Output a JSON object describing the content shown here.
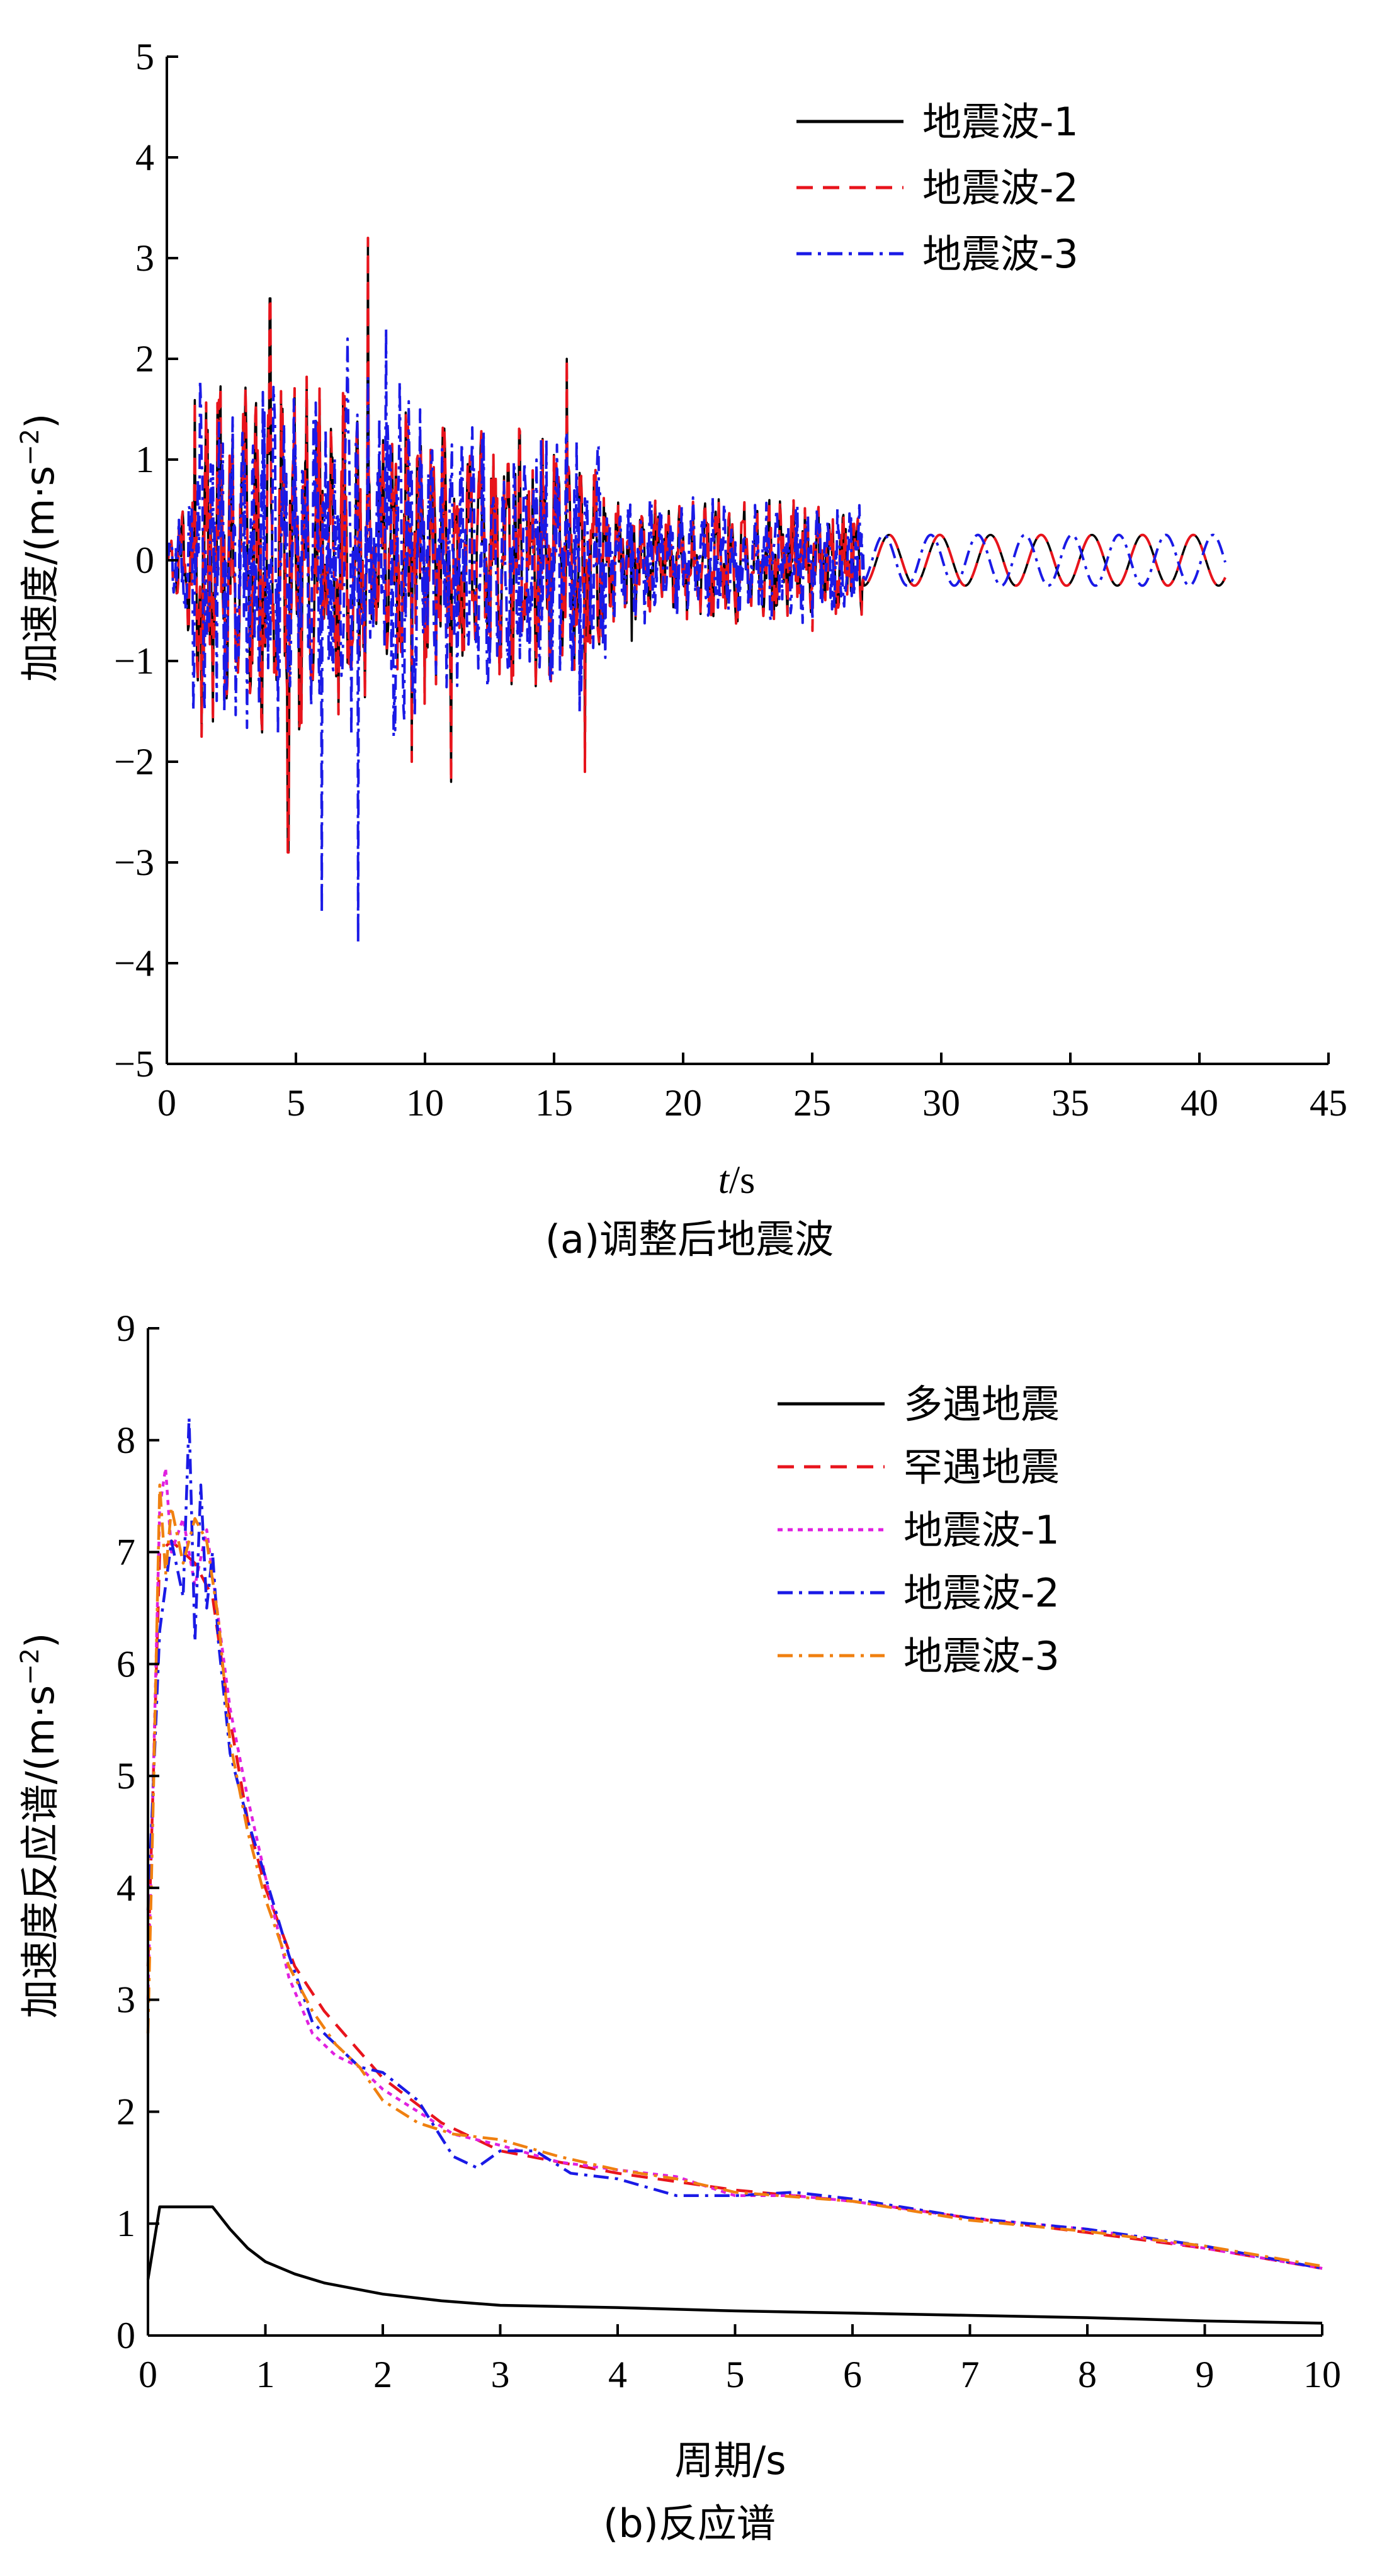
{
  "chart_data": [
    {
      "type": "line",
      "caption": "(a)调整后地震波",
      "xlabel_italic": "t",
      "xlabel_unit": "/s",
      "ylabel": "加速度/(m·s",
      "ylabel_exp": "−2",
      "ylabel_close": ")",
      "xlim": [
        0,
        45
      ],
      "ylim": [
        -5,
        5
      ],
      "xticks": [
        "0",
        "5",
        "10",
        "15",
        "20",
        "25",
        "30",
        "35",
        "40",
        "45"
      ],
      "yticks": [
        "5",
        "4",
        "3",
        "2",
        "1",
        "0",
        "−1",
        "−2",
        "−3",
        "−4",
        "−5"
      ],
      "legend_position": "top-right",
      "duration": 41,
      "series": [
        {
          "name": "地震波-1",
          "color": "#000000",
          "style": "solid",
          "peaks": [
            [
              4.0,
              2.6
            ],
            [
              4.7,
              -2.9
            ],
            [
              7.8,
              3.2
            ],
            [
              9.5,
              -2.0
            ],
            [
              11.0,
              -2.2
            ],
            [
              15.5,
              2.0
            ],
            [
              16.2,
              -2.1
            ],
            [
              18.0,
              -0.8
            ]
          ]
        },
        {
          "name": "地震波-2",
          "color": "#e8141c",
          "style": "dashed",
          "peaks": [
            [
              4.0,
              2.6
            ],
            [
              4.7,
              -2.9
            ],
            [
              7.8,
              3.2
            ],
            [
              9.5,
              -2.0
            ],
            [
              11.0,
              -2.2
            ],
            [
              15.5,
              2.0
            ],
            [
              16.2,
              -2.1
            ],
            [
              25.0,
              -0.7
            ]
          ]
        },
        {
          "name": "地震波-3",
          "color": "#1a1ae6",
          "style": "dashdot",
          "peaks": [
            [
              6.0,
              -3.5
            ],
            [
              7.0,
              2.2
            ],
            [
              7.4,
              -3.8
            ],
            [
              8.5,
              2.3
            ],
            [
              14.5,
              1.2
            ],
            [
              16.0,
              -1.5
            ]
          ]
        }
      ]
    },
    {
      "type": "line",
      "caption": "(b)反应谱",
      "xlabel": "周期/s",
      "ylabel": "加速度反应谱/(m·s",
      "ylabel_exp": "−2",
      "ylabel_close": ")",
      "xlim": [
        0,
        10
      ],
      "ylim": [
        0,
        9
      ],
      "xticks": [
        "0",
        "1",
        "2",
        "3",
        "4",
        "5",
        "6",
        "7",
        "8",
        "9",
        "10"
      ],
      "yticks": [
        "9",
        "8",
        "7",
        "6",
        "5",
        "4",
        "3",
        "2",
        "1",
        "0"
      ],
      "legend_position": "top-right",
      "series": [
        {
          "name": "多遇地震",
          "color": "#000000",
          "style": "solid",
          "x": [
            0,
            0.1,
            0.2,
            0.3,
            0.4,
            0.55,
            0.7,
            0.85,
            1.0,
            1.25,
            1.5,
            2.0,
            2.5,
            3.0,
            4.0,
            5.0,
            6.0,
            7.0,
            8.0,
            9.0,
            10.0
          ],
          "y": [
            0.5,
            1.15,
            1.15,
            1.15,
            1.15,
            1.15,
            0.95,
            0.78,
            0.66,
            0.55,
            0.47,
            0.37,
            0.31,
            0.27,
            0.25,
            0.22,
            0.2,
            0.18,
            0.16,
            0.13,
            0.11
          ]
        },
        {
          "name": "罕遇地震",
          "color": "#e8141c",
          "style": "dashed",
          "x": [
            0,
            0.1,
            0.2,
            0.3,
            0.4,
            0.55,
            0.7,
            0.85,
            1.0,
            1.25,
            1.5,
            2.0,
            2.5,
            3.0,
            4.0,
            5.0,
            6.0,
            7.0,
            8.0,
            9.0,
            10.0
          ],
          "y": [
            3.3,
            7.0,
            7.1,
            7.0,
            6.9,
            6.6,
            5.5,
            4.6,
            4.0,
            3.3,
            2.9,
            2.3,
            1.9,
            1.65,
            1.45,
            1.3,
            1.2,
            1.05,
            0.92,
            0.78,
            0.6
          ]
        },
        {
          "name": "地震波-1",
          "color": "#e020e0",
          "style": "dotted",
          "x": [
            0,
            0.1,
            0.15,
            0.2,
            0.3,
            0.4,
            0.5,
            0.6,
            0.7,
            0.85,
            1.0,
            1.2,
            1.4,
            1.6,
            1.8,
            2.0,
            2.3,
            2.6,
            3.0,
            3.5,
            4.0,
            4.5,
            5.0,
            5.5,
            6.0,
            7.0,
            8.0,
            9.0,
            10.0
          ],
          "y": [
            3.0,
            7.4,
            7.75,
            7.0,
            7.3,
            6.7,
            7.2,
            6.4,
            5.6,
            4.8,
            4.1,
            3.2,
            2.7,
            2.5,
            2.4,
            2.2,
            2.0,
            1.8,
            1.7,
            1.55,
            1.48,
            1.42,
            1.25,
            1.25,
            1.2,
            1.05,
            0.95,
            0.78,
            0.6
          ]
        },
        {
          "name": "地震波-2",
          "color": "#1a1ae6",
          "style": "dashdot",
          "x": [
            0,
            0.1,
            0.2,
            0.3,
            0.35,
            0.4,
            0.45,
            0.5,
            0.55,
            0.6,
            0.7,
            0.85,
            1.0,
            1.2,
            1.4,
            1.6,
            1.8,
            2.0,
            2.3,
            2.6,
            2.8,
            3.0,
            3.3,
            3.6,
            4.0,
            4.5,
            5.0,
            5.5,
            6.0,
            7.0,
            8.0,
            9.0,
            10.0
          ],
          "y": [
            3.8,
            6.3,
            7.1,
            6.6,
            8.2,
            6.2,
            7.6,
            6.5,
            7.0,
            6.2,
            5.2,
            4.6,
            4.1,
            3.4,
            2.8,
            2.6,
            2.4,
            2.35,
            2.1,
            1.6,
            1.5,
            1.65,
            1.65,
            1.45,
            1.4,
            1.25,
            1.25,
            1.28,
            1.22,
            1.05,
            0.95,
            0.8,
            0.6
          ]
        },
        {
          "name": "地震波-3",
          "color": "#f08010",
          "style": "dashdot",
          "x": [
            0,
            0.05,
            0.1,
            0.15,
            0.2,
            0.3,
            0.4,
            0.5,
            0.6,
            0.7,
            0.85,
            1.0,
            1.2,
            1.4,
            1.6,
            1.8,
            2.0,
            2.3,
            2.6,
            3.0,
            3.5,
            4.0,
            4.5,
            5.0,
            5.5,
            6.0,
            7.0,
            8.0,
            9.0,
            10.0
          ],
          "y": [
            2.7,
            5.0,
            7.6,
            6.8,
            7.4,
            6.9,
            7.3,
            7.1,
            6.4,
            5.3,
            4.5,
            3.9,
            3.3,
            2.9,
            2.6,
            2.4,
            2.1,
            1.9,
            1.8,
            1.75,
            1.6,
            1.48,
            1.4,
            1.28,
            1.24,
            1.2,
            1.03,
            0.93,
            0.8,
            0.62
          ]
        }
      ]
    }
  ]
}
